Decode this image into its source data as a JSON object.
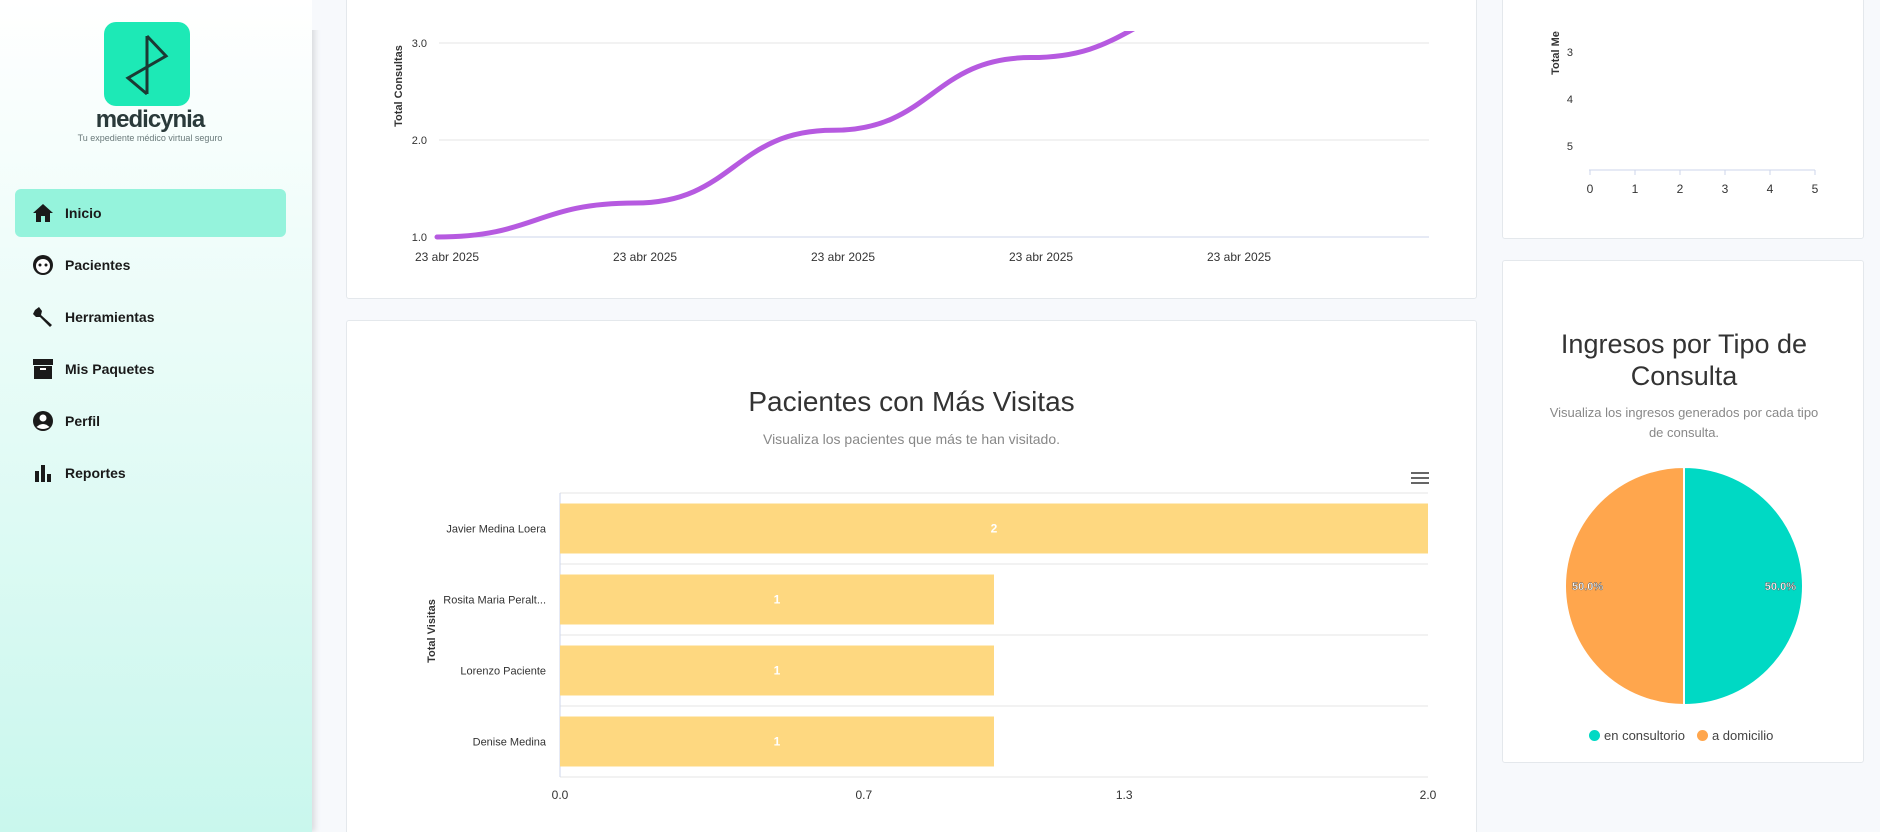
{
  "sidebar": {
    "brand": "medicynia",
    "tagline": "Tu expediente médico virtual seguro",
    "items": [
      {
        "label": "Inicio",
        "icon": "home-icon",
        "active": true
      },
      {
        "label": "Pacientes",
        "icon": "patient-face-icon",
        "active": false
      },
      {
        "label": "Herramientas",
        "icon": "wrench-icon",
        "active": false
      },
      {
        "label": "Mis Paquetes",
        "icon": "package-box-icon",
        "active": false
      },
      {
        "label": "Perfil",
        "icon": "profile-icon",
        "active": false
      },
      {
        "label": "Reportes",
        "icon": "bar-chart-icon",
        "active": false
      }
    ]
  },
  "colors": {
    "accent": "#1de9b6",
    "line": "#b65ae0",
    "bar": "#fed880",
    "teal": "#00d9c4",
    "orange": "#ffa64d"
  },
  "chart_data": [
    {
      "type": "line",
      "title": "",
      "ylabel": "Total Consultas",
      "x": [
        "23 abr 2025",
        "23 abr 2025",
        "23 abr 2025",
        "23 abr 2025",
        "23 abr 2025"
      ],
      "yticks": [
        "1.0",
        "2.0",
        "3.0"
      ],
      "ylim": [
        1,
        3
      ],
      "series": [
        {
          "values": [
            1.0,
            1.35,
            2.1,
            2.85,
            3.4
          ]
        }
      ]
    },
    {
      "type": "bar",
      "orientation": "horizontal",
      "title": "Pacientes con Más Visitas",
      "subtitle": "Visualiza los pacientes que más te han visitado.",
      "ylabel": "Total Visitas",
      "categories": [
        "Javier Medina Loera",
        "Rosita Maria Peralt...",
        "Lorenzo Paciente",
        "Denise Medina"
      ],
      "values": [
        2,
        1,
        1,
        1
      ],
      "xticks": [
        "0.0",
        "0.7",
        "1.3",
        "2.0"
      ],
      "xlim": [
        0,
        2
      ]
    },
    {
      "type": "scatter",
      "ylabel": "Total Me",
      "yticks": [
        "3",
        "4",
        "5"
      ],
      "xticks": [
        "0",
        "1",
        "2",
        "3",
        "4",
        "5"
      ]
    },
    {
      "type": "pie",
      "title": "Ingresos por Tipo de Consulta",
      "subtitle": "Visualiza los ingresos generados por cada tipo de consulta.",
      "slices": [
        {
          "name": "en consultorio",
          "value": 50.0,
          "label": "50.0%",
          "color": "#00d9c4"
        },
        {
          "name": "a domicilio",
          "value": 50.0,
          "label": "50.0%",
          "color": "#ffa64d"
        }
      ]
    }
  ]
}
